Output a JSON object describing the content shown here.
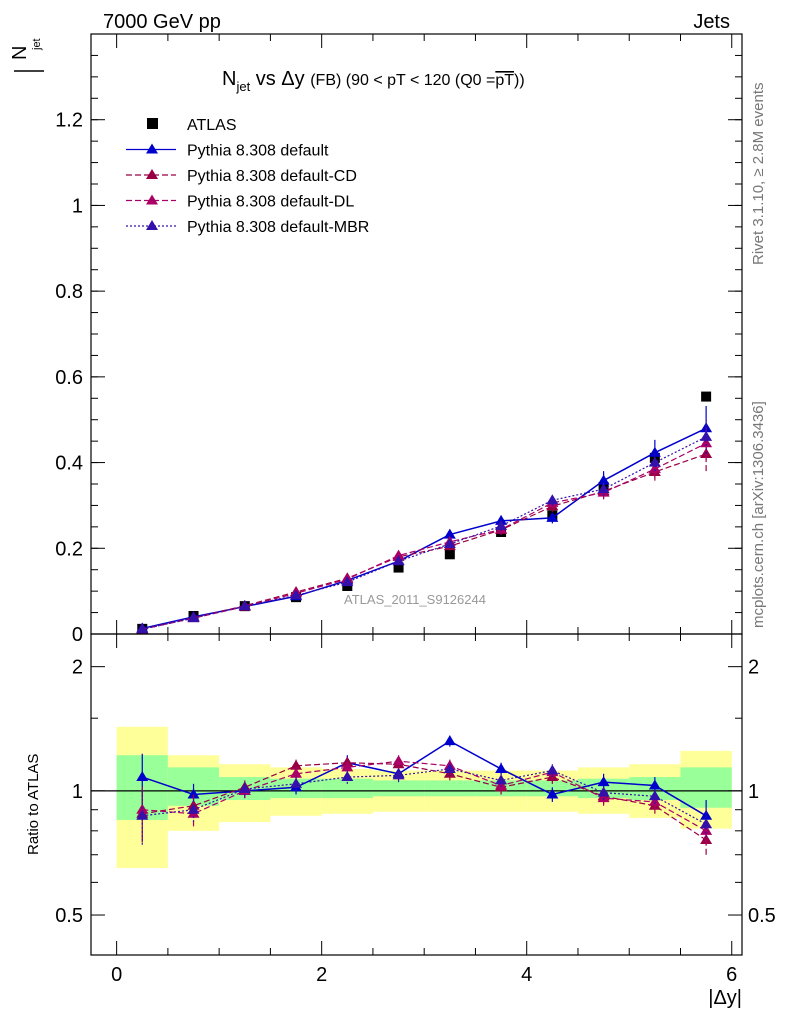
{
  "header": {
    "left": "7000 GeV pp",
    "right": "Jets"
  },
  "side_labels": {
    "rivet": "Rivet 3.1.10, ≥ 2.8M events",
    "mcplots": "mcplots.cern.ch [arXiv:1306.3436]"
  },
  "colors": {
    "atlas": "#000000",
    "default": "#0000cc",
    "cd": "#990044",
    "dl": "#aa0066",
    "mbr": "#3311aa",
    "band_inner": "#99ff99",
    "band_outer": "#ffff99"
  },
  "chart_data": [
    {
      "id": "main",
      "type": "scatter",
      "title_main": "N",
      "title_sub": "jet",
      "title_rest": " vs Δy ",
      "title_small": "(FB) (90 < pT < 120 (Q0 =",
      "title_over": "pT",
      "title_end": "))",
      "ylabel_main": "N",
      "ylabel_sub": "jet",
      "watermark": "ATLAS_2011_S9126244",
      "xlim": [
        -0.25,
        6.1
      ],
      "ylim": [
        0,
        1.4
      ],
      "yticks": [
        0,
        0.2,
        0.4,
        0.6,
        0.8,
        1,
        1.2
      ],
      "ytick_labels": [
        "0",
        "0.2",
        "0.4",
        "0.6",
        "0.8",
        "1",
        "1.2"
      ],
      "x": [
        0.25,
        0.75,
        1.25,
        1.75,
        2.25,
        2.75,
        3.25,
        3.75,
        4.25,
        4.75,
        5.25,
        5.75
      ],
      "series": [
        {
          "key": "atlas",
          "name": "ATLAS",
          "marker": "square",
          "style": "none",
          "values": [
            0.012,
            0.042,
            0.065,
            0.086,
            0.112,
            0.155,
            0.186,
            0.238,
            0.277,
            0.343,
            0.411,
            0.554
          ]
        },
        {
          "key": "default",
          "name": "Pythia 8.308 default",
          "marker": "triangle",
          "style": "solid",
          "values": [
            0.013,
            0.04,
            0.064,
            0.088,
            0.125,
            0.17,
            0.232,
            0.264,
            0.271,
            0.358,
            0.423,
            0.48
          ],
          "errors": [
            0.003,
            0.003,
            0.004,
            0.005,
            0.007,
            0.009,
            0.01,
            0.012,
            0.013,
            0.022,
            0.03,
            0.052
          ]
        },
        {
          "key": "cd",
          "name": "Pythia 8.308 default-CD",
          "marker": "triangle",
          "style": "dashed",
          "values": [
            0.011,
            0.038,
            0.066,
            0.098,
            0.13,
            0.18,
            0.205,
            0.243,
            0.298,
            0.333,
            0.378,
            0.42
          ],
          "errors": [
            0.003,
            0.003,
            0.004,
            0.005,
            0.007,
            0.009,
            0.01,
            0.012,
            0.013,
            0.016,
            0.02,
            0.04
          ]
        },
        {
          "key": "dl",
          "name": "Pythia 8.308 default-DL",
          "marker": "triangle",
          "style": "dashed",
          "values": [
            0.011,
            0.037,
            0.064,
            0.095,
            0.128,
            0.183,
            0.215,
            0.244,
            0.306,
            0.33,
            0.385,
            0.445
          ],
          "errors": [
            0.003,
            0.003,
            0.004,
            0.005,
            0.007,
            0.009,
            0.01,
            0.012,
            0.013,
            0.016,
            0.02,
            0.038
          ]
        },
        {
          "key": "mbr",
          "name": "Pythia 8.308 default-MBR",
          "marker": "triangle",
          "style": "dotted",
          "values": [
            0.011,
            0.037,
            0.065,
            0.09,
            0.121,
            0.17,
            0.21,
            0.252,
            0.312,
            0.338,
            0.4,
            0.46
          ],
          "errors": [
            0.003,
            0.003,
            0.004,
            0.005,
            0.007,
            0.009,
            0.01,
            0.012,
            0.013,
            0.016,
            0.02,
            0.04
          ]
        }
      ]
    },
    {
      "id": "ratio",
      "type": "scatter",
      "ylabel": "Ratio to ATLAS",
      "xlabel": "|Δy|",
      "xlim": [
        -0.25,
        6.1
      ],
      "ylim_log": [
        0.4,
        2.4
      ],
      "yticks": [
        0.5,
        1,
        2
      ],
      "ytick_labels": [
        "0.5",
        "1",
        "2"
      ],
      "xticks": [
        0,
        2,
        4,
        6
      ],
      "xtick_labels": [
        "0",
        "2",
        "4",
        "6"
      ],
      "bin_edges": [
        0,
        0.5,
        1,
        1.5,
        2,
        2.5,
        3,
        3.5,
        4,
        4.5,
        5,
        5.5,
        6
      ],
      "band_inner": [
        [
          0.85,
          1.22
        ],
        [
          0.92,
          1.14
        ],
        [
          0.95,
          1.08
        ],
        [
          0.96,
          1.07
        ],
        [
          0.96,
          1.07
        ],
        [
          0.97,
          1.06
        ],
        [
          0.97,
          1.06
        ],
        [
          0.97,
          1.06
        ],
        [
          0.97,
          1.06
        ],
        [
          0.96,
          1.07
        ],
        [
          0.95,
          1.08
        ],
        [
          0.91,
          1.14
        ]
      ],
      "band_outer": [
        [
          0.65,
          1.43
        ],
        [
          0.8,
          1.22
        ],
        [
          0.84,
          1.16
        ],
        [
          0.87,
          1.14
        ],
        [
          0.88,
          1.13
        ],
        [
          0.89,
          1.12
        ],
        [
          0.89,
          1.12
        ],
        [
          0.89,
          1.12
        ],
        [
          0.89,
          1.12
        ],
        [
          0.88,
          1.14
        ],
        [
          0.86,
          1.16
        ],
        [
          0.81,
          1.25
        ]
      ],
      "series": [
        {
          "key": "default",
          "style": "solid",
          "values": [
            1.08,
            0.98,
            1.0,
            1.02,
            1.17,
            1.1,
            1.32,
            1.13,
            0.98,
            1.05,
            1.03,
            0.87
          ],
          "errors": [
            0.15,
            0.06,
            0.04,
            0.04,
            0.05,
            0.04,
            0.04,
            0.04,
            0.04,
            0.05,
            0.05,
            0.08
          ]
        },
        {
          "key": "cd",
          "style": "dashed",
          "values": [
            0.88,
            0.92,
            1.02,
            1.15,
            1.17,
            1.16,
            1.1,
            1.02,
            1.08,
            0.97,
            0.92,
            0.76
          ],
          "errors": [
            0.13,
            0.06,
            0.04,
            0.04,
            0.04,
            0.04,
            0.04,
            0.04,
            0.04,
            0.04,
            0.04,
            0.06
          ]
        },
        {
          "key": "dl",
          "style": "dashed",
          "values": [
            0.9,
            0.88,
            1.0,
            1.1,
            1.14,
            1.18,
            1.15,
            1.03,
            1.11,
            0.96,
            0.94,
            0.8
          ],
          "errors": [
            0.13,
            0.06,
            0.04,
            0.04,
            0.04,
            0.04,
            0.04,
            0.04,
            0.04,
            0.04,
            0.04,
            0.06
          ]
        },
        {
          "key": "mbr",
          "style": "dotted",
          "values": [
            0.87,
            0.9,
            1.01,
            1.04,
            1.08,
            1.09,
            1.13,
            1.06,
            1.12,
            0.99,
            0.97,
            0.83
          ],
          "errors": [
            0.13,
            0.06,
            0.04,
            0.04,
            0.04,
            0.04,
            0.04,
            0.04,
            0.04,
            0.04,
            0.04,
            0.06
          ]
        }
      ]
    }
  ]
}
